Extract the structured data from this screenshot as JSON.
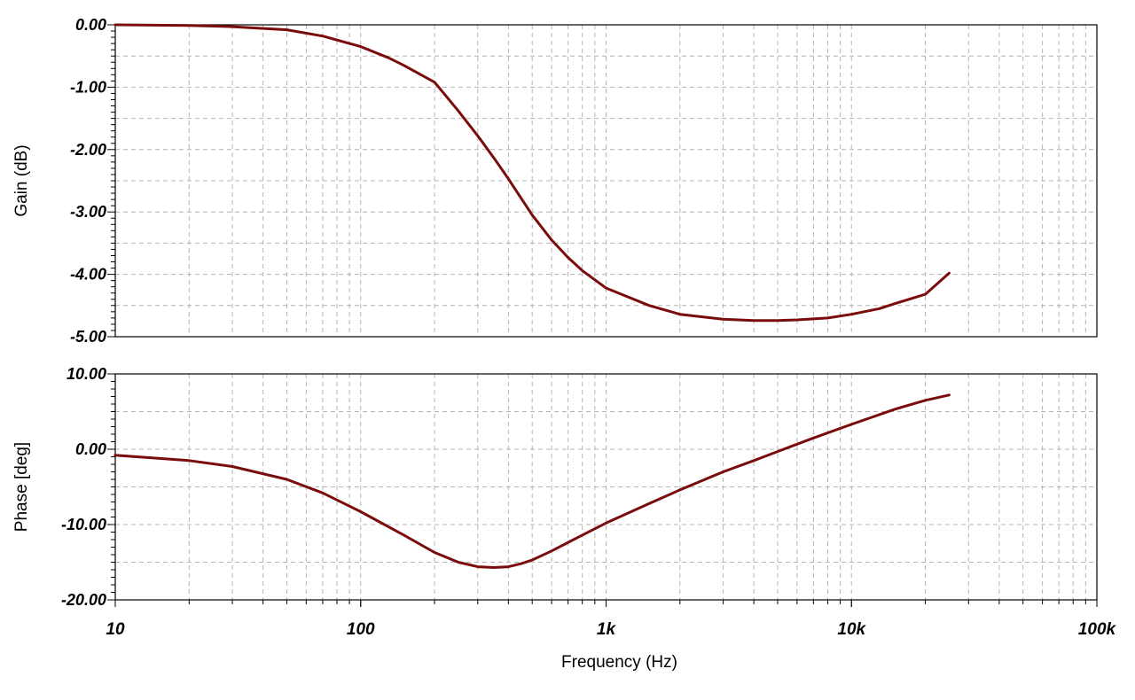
{
  "colors": {
    "series": "#7a0c0c",
    "grid": "#b4b4b4",
    "frame": "#000000",
    "background": "#ffffff"
  },
  "chart_data": {
    "type": "line",
    "xscale": "log",
    "xlim": [
      10,
      100000
    ],
    "xlabel": "Frequency (Hz)",
    "xtick_values": [
      10,
      100,
      1000,
      10000,
      100000
    ],
    "xtick_labels": [
      "10",
      "100",
      "1k",
      "10k",
      "100k"
    ],
    "grid": true,
    "panels": [
      {
        "id": "gain",
        "ylabel": "Gain (dB)",
        "ylim": [
          -5,
          0
        ],
        "ytick_values": [
          0,
          -1,
          -2,
          -3,
          -4,
          -5
        ],
        "ytick_labels": [
          "0.00",
          "-1.00",
          "-2.00",
          "-3.00",
          "-4.00",
          "-5.00"
        ],
        "series": [
          {
            "x": [
              10,
              20,
              30,
              50,
              70,
              100,
              130,
              150,
              200,
              250,
              300,
              350,
              400,
              500,
              600,
              700,
              800,
              1000,
              1500,
              2000,
              3000,
              4000,
              5000,
              6000,
              8000,
              10000,
              13000,
              15000,
              20000,
              25000
            ],
            "y": [
              0,
              -0.01,
              -0.03,
              -0.08,
              -0.18,
              -0.35,
              -0.53,
              -0.65,
              -0.92,
              -1.38,
              -1.78,
              -2.14,
              -2.47,
              -3.05,
              -3.45,
              -3.73,
              -3.94,
              -4.22,
              -4.5,
              -4.64,
              -4.72,
              -4.74,
              -4.74,
              -4.73,
              -4.7,
              -4.64,
              -4.55,
              -4.47,
              -4.32,
              -3.98
            ]
          }
        ]
      },
      {
        "id": "phase",
        "ylabel": "Phase [deg]",
        "ylim": [
          -20,
          10
        ],
        "ytick_values": [
          10,
          0,
          -10,
          -20
        ],
        "ytick_labels": [
          "10.00",
          "0.00",
          "-10.00",
          "-20.00"
        ],
        "series": [
          {
            "x": [
              10,
              20,
              30,
              50,
              70,
              100,
              150,
              200,
              250,
              300,
              350,
              400,
              450,
              500,
              600,
              800,
              1000,
              1500,
              2000,
              3000,
              4000,
              5000,
              7000,
              10000,
              15000,
              20000,
              25000
            ],
            "y": [
              -0.8,
              -1.5,
              -2.3,
              -4.0,
              -5.8,
              -8.3,
              -11.4,
              -13.7,
              -15.0,
              -15.6,
              -15.7,
              -15.6,
              -15.2,
              -14.7,
              -13.5,
              -11.4,
              -9.8,
              -7.2,
              -5.4,
              -3.0,
              -1.5,
              -0.3,
              1.5,
              3.3,
              5.3,
              6.5,
              7.2
            ]
          }
        ]
      }
    ]
  }
}
